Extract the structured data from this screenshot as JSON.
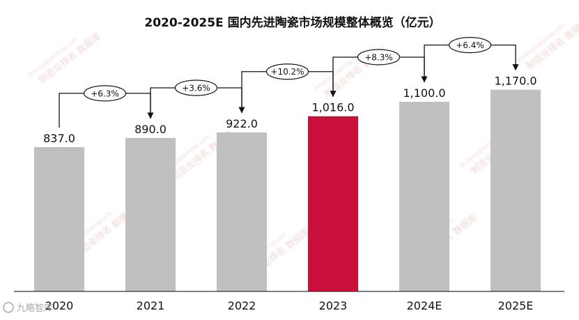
{
  "chart_data": {
    "type": "bar",
    "title": "2020-2025E 国内先进陶瓷市场规模整体概览（亿元）",
    "categories": [
      "2020",
      "2021",
      "2022",
      "2023",
      "2024E",
      "2025E"
    ],
    "values": [
      837.0,
      890.0,
      922.0,
      1016.0,
      1100.0,
      1170.0
    ],
    "value_labels": [
      "837.0",
      "890.0",
      "922.0",
      "1,016.0",
      "1,100.0",
      "1,170.0"
    ],
    "growth_labels": [
      "+6.3%",
      "+3.6%",
      "+10.2%",
      "+8.3%",
      "+6.4%"
    ],
    "highlight_index": 3,
    "colors": {
      "bar": "#c0c0c0",
      "highlight": "#c8103a",
      "axis": "#333333",
      "watermark": "#f2b8b8"
    },
    "grid": false,
    "legend": "none"
  },
  "watermark": {
    "text": "制造业排名 数据库",
    "url": "zhizaoyepaiming.com",
    "corner": "九略智库"
  }
}
